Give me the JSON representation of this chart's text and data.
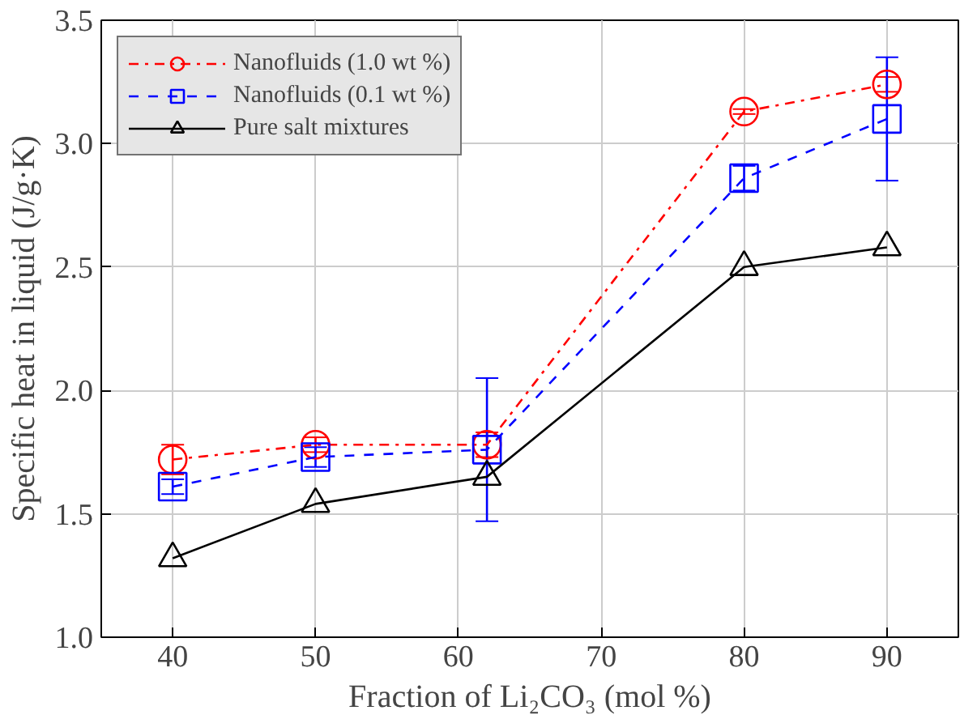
{
  "chart_data": {
    "type": "line",
    "xlabel": "Fraction of Li₂CO₃ (mol %)",
    "ylabel": "Specific heat in liquid (J/g·K)",
    "x": [
      40,
      50,
      62,
      80,
      90
    ],
    "xlim": [
      35,
      95
    ],
    "xticks": [
      40,
      50,
      60,
      70,
      80,
      90
    ],
    "ylim": [
      1.0,
      3.5
    ],
    "yticks": [
      {
        "value": 1.0,
        "label": "1.0"
      },
      {
        "value": 1.5,
        "label": "1.5"
      },
      {
        "value": 2.0,
        "label": "2.0"
      },
      {
        "value": 2.5,
        "label": "2.5"
      },
      {
        "value": 3.0,
        "label": "3.0"
      },
      {
        "value": 3.5,
        "label": "3.5"
      }
    ],
    "grid": true,
    "legend": "top left",
    "series": [
      {
        "name": "Nanofluids (1.0 wt %)",
        "color": "#ff0000",
        "marker": "circle",
        "line_style": "dashdot",
        "values": [
          1.72,
          1.78,
          1.78,
          3.13,
          3.24
        ],
        "errors": [
          0.06,
          0.03,
          0.05,
          0.01,
          0.03
        ]
      },
      {
        "name": "Nanofluids (0.1 wt %)",
        "color": "#0000ff",
        "marker": "square",
        "line_style": "dashed",
        "values": [
          1.61,
          1.73,
          1.76,
          2.86,
          3.1
        ],
        "errors": [
          0.03,
          0.04,
          0.29,
          0.05,
          0.25
        ]
      },
      {
        "name": "Pure salt mixtures",
        "color": "#000000",
        "marker": "triangle",
        "line_style": "solid",
        "values": [
          1.32,
          1.54,
          1.65,
          2.5,
          2.58
        ]
      }
    ]
  }
}
